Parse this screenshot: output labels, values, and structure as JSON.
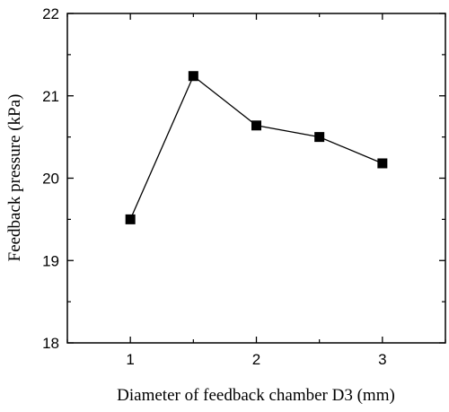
{
  "chart_data": {
    "type": "line",
    "title": "",
    "xlabel": "Diameter of feedback chamber D3 (mm)",
    "ylabel": "Feedback pressure (kPa)",
    "xlim": [
      0.5,
      3.5
    ],
    "ylim": [
      18,
      22
    ],
    "xticks": [
      1,
      2,
      3
    ],
    "yticks": [
      18,
      19,
      20,
      21,
      22
    ],
    "xtick_labels": [
      "1",
      "2",
      "3"
    ],
    "ytick_labels": [
      "18",
      "19",
      "20",
      "21",
      "22"
    ],
    "grid": false,
    "legend": "none",
    "series": [
      {
        "marker": "square",
        "color": "#000000",
        "x": [
          1.0,
          1.5,
          2.0,
          2.5,
          3.0
        ],
        "y": [
          19.5,
          21.24,
          20.64,
          20.5,
          20.18
        ]
      }
    ]
  }
}
